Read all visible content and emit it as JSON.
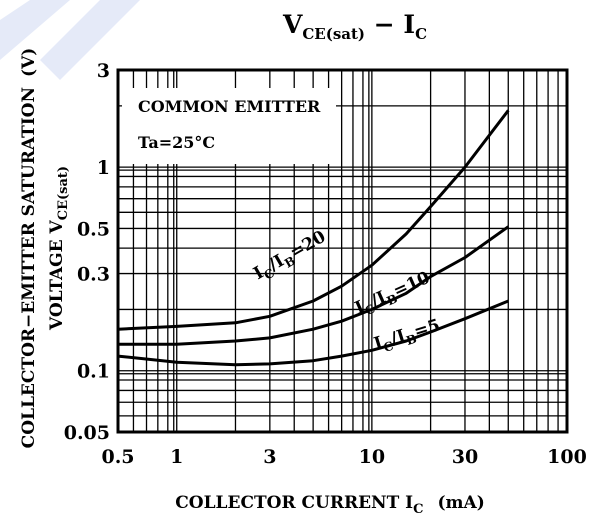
{
  "chart_data": {
    "type": "line",
    "title": {
      "main": "V",
      "sub": "CE(sat)",
      "sep": " − ",
      "main2": "I",
      "sub2": "C"
    },
    "xlabel": {
      "main": "COLLECTOR CURRENT I",
      "sub": "C",
      "tail": "(mA)"
    },
    "ylabel": {
      "line1": "COLLECTOR−EMITTER SATURATION",
      "unit": "(V)",
      "line2_main": "VOLTAGE  V",
      "line2_sub": "CE(sat)"
    },
    "xscale": "log",
    "yscale": "log",
    "xlim": [
      0.5,
      100
    ],
    "ylim": [
      0.05,
      3
    ],
    "xticks": [
      0.5,
      1,
      3,
      10,
      30,
      100
    ],
    "xtick_labels": [
      "0.5",
      "1",
      "3",
      "10",
      "30",
      "100"
    ],
    "yticks": [
      0.05,
      0.1,
      0.3,
      0.5,
      1,
      3
    ],
    "ytick_labels": [
      "0.05",
      "0.1",
      "0.3",
      "0.5",
      "1",
      "3"
    ],
    "grid": true,
    "annotation": {
      "line1": "COMMON EMITTER",
      "line2": "Ta=25°C"
    },
    "series": [
      {
        "name": "IC/IB=20",
        "label": {
          "i1": "I",
          "s1": "C",
          "slash": "/",
          "i2": "I",
          "s2": "B",
          "eq": "=20"
        },
        "x": [
          0.5,
          1,
          2,
          3,
          5,
          7,
          10,
          15,
          20,
          30,
          50
        ],
        "y": [
          0.16,
          0.165,
          0.172,
          0.185,
          0.22,
          0.26,
          0.33,
          0.47,
          0.64,
          1.0,
          1.9
        ]
      },
      {
        "name": "IC/IB=10",
        "label": {
          "i1": "I",
          "s1": "C",
          "slash": "/",
          "i2": "I",
          "s2": "B",
          "eq": "=10"
        },
        "x": [
          0.5,
          1,
          2,
          3,
          5,
          7,
          10,
          15,
          20,
          30,
          50
        ],
        "y": [
          0.135,
          0.135,
          0.14,
          0.145,
          0.16,
          0.175,
          0.2,
          0.24,
          0.29,
          0.36,
          0.51
        ]
      },
      {
        "name": "IC/IB=5",
        "label": {
          "i1": "I",
          "s1": "C",
          "slash": "/",
          "i2": "I",
          "s2": "B",
          "eq": "=5"
        },
        "x": [
          0.5,
          1,
          2,
          3,
          5,
          7,
          10,
          15,
          20,
          30,
          50
        ],
        "y": [
          0.118,
          0.11,
          0.107,
          0.108,
          0.112,
          0.118,
          0.126,
          0.14,
          0.155,
          0.18,
          0.22
        ]
      }
    ]
  }
}
